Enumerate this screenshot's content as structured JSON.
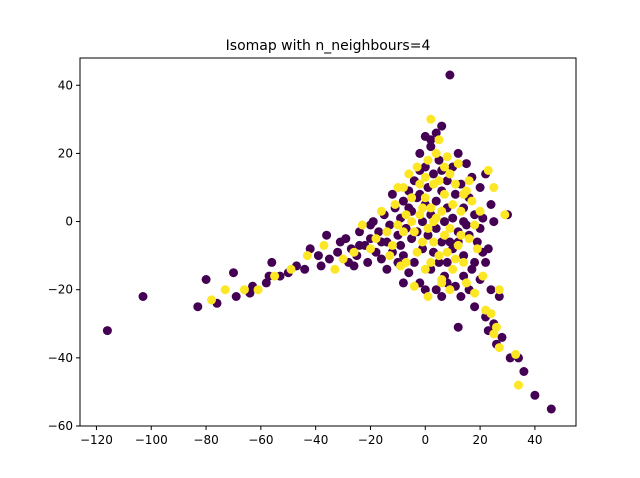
{
  "chart_data": {
    "type": "scatter",
    "title": "Isomap with n_neighbours=4",
    "xlabel": "",
    "ylabel": "",
    "xlim": [
      -126,
      55
    ],
    "ylim": [
      -60,
      48
    ],
    "x_ticks": [
      -120,
      -100,
      -80,
      -60,
      -40,
      -20,
      0,
      20,
      40
    ],
    "y_ticks": [
      -60,
      -40,
      -20,
      0,
      20,
      40
    ],
    "grid": false,
    "legend": "none",
    "colors": {
      "class_0": "#440154",
      "class_1": "#fde725"
    },
    "series": [
      {
        "class": 0,
        "points": [
          [
            -116,
            -32
          ],
          [
            -103,
            -22
          ],
          [
            -83,
            -25
          ],
          [
            -80,
            -17
          ],
          [
            -76,
            -24
          ],
          [
            -70,
            -15
          ],
          [
            -69,
            -22
          ],
          [
            -64,
            -21
          ],
          [
            -63,
            -19
          ],
          [
            -58,
            -18
          ],
          [
            -57,
            -16
          ],
          [
            -56,
            -12
          ],
          [
            -53,
            -16
          ],
          [
            -50,
            -15
          ],
          [
            -47,
            -13
          ],
          [
            -44,
            -14
          ],
          [
            -42,
            -8
          ],
          [
            -39,
            -10
          ],
          [
            -38,
            -13
          ],
          [
            -36,
            -4
          ],
          [
            -35,
            -11
          ],
          [
            -32,
            -9
          ],
          [
            -31,
            -6
          ],
          [
            -29,
            -5
          ],
          [
            -28,
            -12
          ],
          [
            -27,
            -8
          ],
          [
            -25,
            -10
          ],
          [
            -24,
            -3
          ],
          [
            -22,
            -7
          ],
          [
            -21,
            -12
          ],
          [
            -20,
            -5
          ],
          [
            -19,
            0
          ],
          [
            -18,
            -9
          ],
          [
            -17,
            -3
          ],
          [
            -16,
            -11
          ],
          [
            -15,
            2
          ],
          [
            -14,
            -6
          ],
          [
            -13,
            -1
          ],
          [
            -12,
            -9
          ],
          [
            -11,
            4
          ],
          [
            -10,
            -4
          ],
          [
            -9,
            1
          ],
          [
            -9,
            -7
          ],
          [
            -8,
            6
          ],
          [
            -7,
            -2
          ],
          [
            -6,
            9
          ],
          [
            -5,
            -5
          ],
          [
            -5,
            3
          ],
          [
            -4,
            12
          ],
          [
            -3,
            -3
          ],
          [
            -3,
            7
          ],
          [
            -2,
            15
          ],
          [
            -1,
            0
          ],
          [
            -1,
            -8
          ],
          [
            0,
            5
          ],
          [
            0,
            25
          ],
          [
            1,
            10
          ],
          [
            1,
            -4
          ],
          [
            2,
            22
          ],
          [
            2,
            2
          ],
          [
            3,
            -9
          ],
          [
            3,
            14
          ],
          [
            4,
            6
          ],
          [
            4,
            -2
          ],
          [
            5,
            18
          ],
          [
            5,
            -12
          ],
          [
            6,
            9
          ],
          [
            6,
            28
          ],
          [
            7,
            0
          ],
          [
            7,
            -16
          ],
          [
            8,
            12
          ],
          [
            8,
            4
          ],
          [
            9,
            -6
          ],
          [
            9,
            43
          ],
          [
            10,
            16
          ],
          [
            10,
            1
          ],
          [
            11,
            -19
          ],
          [
            11,
            8
          ],
          [
            12,
            -3
          ],
          [
            12,
            -31
          ],
          [
            13,
            11
          ],
          [
            13,
            -22
          ],
          [
            14,
            4
          ],
          [
            14,
            -10
          ],
          [
            15,
            17
          ],
          [
            15,
            -1
          ],
          [
            16,
            -20
          ],
          [
            16,
            7
          ],
          [
            17,
            -14
          ],
          [
            17,
            13
          ],
          [
            18,
            2
          ],
          [
            18,
            -25
          ],
          [
            19,
            -6
          ],
          [
            20,
            -17
          ],
          [
            20,
            10
          ],
          [
            21,
            -9
          ],
          [
            21,
            1
          ],
          [
            22,
            -28
          ],
          [
            22,
            14
          ],
          [
            23,
            -8
          ],
          [
            23,
            -32
          ],
          [
            24,
            5
          ],
          [
            24,
            -20
          ],
          [
            25,
            0
          ],
          [
            25,
            -30
          ],
          [
            26,
            -36
          ],
          [
            27,
            -22
          ],
          [
            28,
            -34
          ],
          [
            30,
            2
          ],
          [
            31,
            -40
          ],
          [
            34,
            -40
          ],
          [
            36,
            -44
          ],
          [
            40,
            -51
          ],
          [
            46,
            -55
          ],
          [
            -6,
            -15
          ],
          [
            -2,
            -18
          ],
          [
            4,
            -20
          ],
          [
            -10,
            -12
          ],
          [
            -14,
            -14
          ],
          [
            8,
            -18
          ],
          [
            2,
            -14
          ],
          [
            -8,
            -10
          ],
          [
            14,
            -16
          ],
          [
            6,
            -22
          ],
          [
            -4,
            -12
          ],
          [
            18,
            -12
          ],
          [
            10,
            -8
          ],
          [
            0,
            -20
          ],
          [
            -16,
            -6
          ],
          [
            12,
            20
          ],
          [
            -12,
            8
          ],
          [
            6,
            15
          ],
          [
            -6,
            4
          ],
          [
            16,
            -4
          ],
          [
            20,
            -2
          ],
          [
            22,
            -12
          ],
          [
            -20,
            -1
          ],
          [
            -24,
            -7
          ],
          [
            -26,
            -13
          ],
          [
            4,
            26
          ],
          [
            2,
            24
          ],
          [
            -2,
            20
          ],
          [
            0,
            16
          ],
          [
            8,
            -12
          ],
          [
            12,
            -6
          ],
          [
            -8,
            -18
          ],
          [
            14,
            0
          ],
          [
            6,
            -6
          ],
          [
            -2,
            8
          ]
        ]
      },
      {
        "class": 1,
        "points": [
          [
            -78,
            -23
          ],
          [
            -73,
            -20
          ],
          [
            -66,
            -20
          ],
          [
            -61,
            -20
          ],
          [
            -55,
            -16
          ],
          [
            -49,
            -14
          ],
          [
            -43,
            -10
          ],
          [
            -37,
            -7
          ],
          [
            -33,
            -14
          ],
          [
            -30,
            -11
          ],
          [
            -26,
            -9
          ],
          [
            -23,
            -1
          ],
          [
            -20,
            -8
          ],
          [
            -18,
            -5
          ],
          [
            -16,
            3
          ],
          [
            -14,
            -3
          ],
          [
            -13,
            -10
          ],
          [
            -11,
            5
          ],
          [
            -10,
            -1
          ],
          [
            -8,
            10
          ],
          [
            -7,
            2
          ],
          [
            -7,
            -12
          ],
          [
            -6,
            14
          ],
          [
            -5,
            7
          ],
          [
            -4,
            -3
          ],
          [
            -3,
            16
          ],
          [
            -2,
            11
          ],
          [
            -2,
            2
          ],
          [
            -1,
            -6
          ],
          [
            0,
            13
          ],
          [
            0,
            7
          ],
          [
            1,
            18
          ],
          [
            1,
            -2
          ],
          [
            2,
            30
          ],
          [
            2,
            4
          ],
          [
            3,
            11
          ],
          [
            3,
            -6
          ],
          [
            4,
            20
          ],
          [
            4,
            1
          ],
          [
            5,
            -10
          ],
          [
            5,
            12
          ],
          [
            6,
            3
          ],
          [
            6,
            -17
          ],
          [
            7,
            8
          ],
          [
            7,
            -4
          ],
          [
            8,
            19
          ],
          [
            8,
            -9
          ],
          [
            9,
            14
          ],
          [
            9,
            -2
          ],
          [
            10,
            5
          ],
          [
            10,
            -14
          ],
          [
            11,
            11
          ],
          [
            12,
            -7
          ],
          [
            12,
            17
          ],
          [
            13,
            3
          ],
          [
            14,
            -12
          ],
          [
            15,
            9
          ],
          [
            15,
            -18
          ],
          [
            16,
            -5
          ],
          [
            17,
            6
          ],
          [
            18,
            -21
          ],
          [
            19,
            -8
          ],
          [
            20,
            3
          ],
          [
            21,
            -16
          ],
          [
            22,
            -26
          ],
          [
            23,
            15
          ],
          [
            24,
            -27
          ],
          [
            25,
            10
          ],
          [
            25,
            -33
          ],
          [
            26,
            -31
          ],
          [
            27,
            -37
          ],
          [
            27,
            -20
          ],
          [
            29,
            2
          ],
          [
            33,
            -39
          ],
          [
            34,
            -48
          ],
          [
            1,
            -22
          ],
          [
            -4,
            -19
          ],
          [
            6,
            -18
          ],
          [
            -9,
            -13
          ],
          [
            -3,
            -9
          ],
          [
            2,
            -12
          ],
          [
            9,
            -20
          ],
          [
            -12,
            -7
          ],
          [
            14,
            8
          ],
          [
            -5,
            0
          ],
          [
            3,
            0
          ],
          [
            -1,
            4
          ],
          [
            0,
            -14
          ],
          [
            11,
            -11
          ],
          [
            7,
            16
          ],
          [
            -8,
            -3
          ],
          [
            5,
            24
          ],
          [
            -10,
            10
          ],
          [
            13,
            -4
          ],
          [
            16,
            12
          ],
          [
            18,
            -1
          ]
        ]
      }
    ]
  }
}
